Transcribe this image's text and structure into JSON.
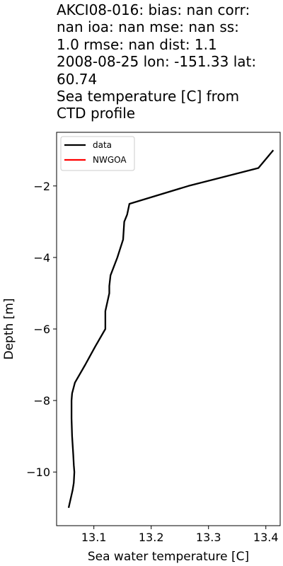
{
  "chart_data": {
    "type": "line",
    "title_lines": [
      "AKCI08-016: bias: nan  corr:",
      "nan  ioa: nan  mse: nan  ss:",
      "1.0  rmse: nan  dist: 1.1",
      "2008-08-25 lon: -151.33 lat:",
      "60.74",
      "Sea temperature [C] from",
      "CTD profile"
    ],
    "xlabel": "Sea water temperature [C]",
    "ylabel": "Depth [m]",
    "xlim": [
      13.035,
      13.425
    ],
    "ylim": [
      -11.5,
      -0.5
    ],
    "xticks": [
      {
        "value": 13.1,
        "label": "13.1"
      },
      {
        "value": 13.2,
        "label": "13.2"
      },
      {
        "value": 13.3,
        "label": "13.3"
      },
      {
        "value": 13.4,
        "label": "13.4"
      }
    ],
    "yticks": [
      {
        "value": -2,
        "label": "−2"
      },
      {
        "value": -4,
        "label": "−4"
      },
      {
        "value": -6,
        "label": "−6"
      },
      {
        "value": -8,
        "label": "−8"
      },
      {
        "value": -10,
        "label": "−10"
      }
    ],
    "legend_position": "upper-left",
    "grid": false,
    "series": [
      {
        "name": "data",
        "color": "#000000",
        "x": [
          13.413,
          13.387,
          13.265,
          13.162,
          13.158,
          13.153,
          13.151,
          13.145,
          13.141,
          13.129,
          13.127,
          13.127,
          13.12,
          13.12,
          13.102,
          13.085,
          13.067,
          13.062,
          13.061,
          13.061,
          13.062,
          13.064,
          13.065,
          13.066,
          13.065,
          13.063,
          13.056
        ],
        "y": [
          -1.0,
          -1.5,
          -2.0,
          -2.5,
          -2.8,
          -3.0,
          -3.5,
          -3.8,
          -4.0,
          -4.5,
          -4.8,
          -5.0,
          -5.5,
          -6.0,
          -6.5,
          -7.0,
          -7.5,
          -7.8,
          -8.0,
          -8.5,
          -9.0,
          -9.5,
          -9.8,
          -10.0,
          -10.3,
          -10.5,
          -11.0
        ]
      },
      {
        "name": "NWGOA",
        "color": "#ff0000",
        "x": [],
        "y": []
      }
    ]
  }
}
